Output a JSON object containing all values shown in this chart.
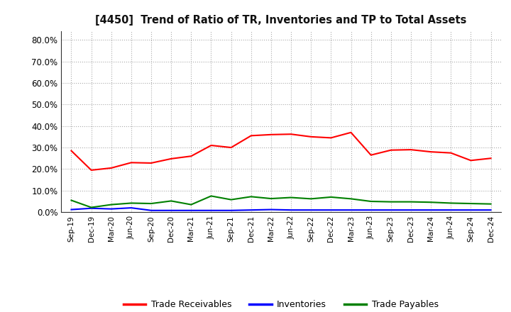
{
  "title": "[4450]  Trend of Ratio of TR, Inventories and TP to Total Assets",
  "x_labels": [
    "Sep-19",
    "Dec-19",
    "Mar-20",
    "Jun-20",
    "Sep-20",
    "Dec-20",
    "Mar-21",
    "Jun-21",
    "Sep-21",
    "Dec-21",
    "Mar-22",
    "Jun-22",
    "Sep-22",
    "Dec-22",
    "Mar-23",
    "Jun-23",
    "Sep-23",
    "Dec-23",
    "Mar-24",
    "Jun-24",
    "Sep-24",
    "Dec-24"
  ],
  "trade_receivables": [
    0.285,
    0.195,
    0.205,
    0.23,
    0.228,
    0.248,
    0.26,
    0.31,
    0.3,
    0.355,
    0.36,
    0.362,
    0.35,
    0.345,
    0.37,
    0.265,
    0.288,
    0.29,
    0.28,
    0.275,
    0.24,
    0.25
  ],
  "inventories": [
    0.012,
    0.018,
    0.015,
    0.02,
    0.008,
    0.008,
    0.008,
    0.008,
    0.008,
    0.01,
    0.012,
    0.01,
    0.01,
    0.01,
    0.01,
    0.01,
    0.01,
    0.01,
    0.01,
    0.01,
    0.01,
    0.01
  ],
  "trade_payables": [
    0.055,
    0.022,
    0.035,
    0.042,
    0.04,
    0.052,
    0.035,
    0.075,
    0.058,
    0.072,
    0.063,
    0.068,
    0.062,
    0.07,
    0.062,
    0.05,
    0.048,
    0.048,
    0.046,
    0.042,
    0.04,
    0.038
  ],
  "tr_color": "#FF0000",
  "inv_color": "#0000FF",
  "tp_color": "#008000",
  "ylim": [
    0.0,
    0.84
  ],
  "yticks": [
    0.0,
    0.1,
    0.2,
    0.3,
    0.4,
    0.5,
    0.6,
    0.7,
    0.8
  ],
  "background_color": "#FFFFFF",
  "grid_color": "#AAAAAA",
  "legend_labels": [
    "Trade Receivables",
    "Inventories",
    "Trade Payables"
  ]
}
